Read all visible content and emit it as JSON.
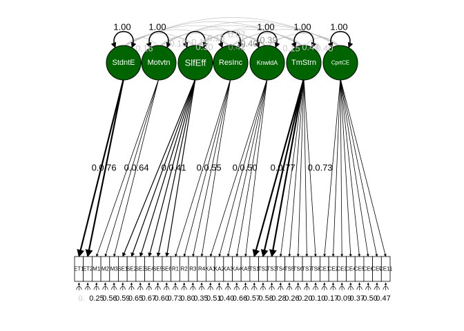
{
  "colors": {
    "latent_fill": "#006400",
    "latent_stroke": "#000000",
    "edge": "#000000",
    "faded_label": "#c8c8c8",
    "mid_label": "#909090"
  },
  "latents": [
    {
      "label": "StdntE",
      "variance": "1.00"
    },
    {
      "label": "Motvtn",
      "variance": "1.00"
    },
    {
      "label": "SlfEff",
      "variance": ""
    },
    {
      "label": "ResInc",
      "variance": ""
    },
    {
      "label": "KnwldA",
      "variance": "1.00"
    },
    {
      "label": "TmStrn",
      "variance": "1.00"
    },
    {
      "label": "CprtCE",
      "variance": "1.00"
    }
  ],
  "covariance_labels": [
    "0.16",
    "0.15",
    "0.15",
    "0.18",
    "0.07",
    "0.30",
    "0.42",
    "0.40",
    "0.39",
    "0.15",
    "0.44",
    "0.40"
  ],
  "loading_labels": [
    "0.76",
    "0.64",
    "0.41",
    "0.55",
    "0.50",
    "0.77",
    "0.73"
  ],
  "indicator_labels": [
    "ET1",
    "ET2",
    "M1",
    "M2",
    "M3",
    "SE1",
    "SE2",
    "SE3",
    "SE4",
    "SE5",
    "SE6",
    "R1",
    "R2",
    "R3",
    "R4",
    "KA1",
    "KA2",
    "KA3",
    "KA4",
    "KA5",
    "TS1",
    "TS2",
    "TS3",
    "TS4",
    "TS5",
    "TS6",
    "TS7",
    "TS8",
    "CE1",
    "CE2",
    "CE3",
    "CE4",
    "CE5",
    "CE6",
    "CE7",
    "CE11"
  ],
  "residual_labels": [
    "0.25",
    "0.56",
    "0.59",
    "0.65",
    "0.67",
    "0.60",
    "0.73",
    "0.80",
    "0.35",
    "0.51",
    "0.40",
    "0.66",
    "0.57",
    "0.58",
    "0.28",
    "0.26",
    "0.20",
    "0.10",
    "0.17",
    "0.09",
    "0.37",
    "0.50",
    "0.47"
  ]
}
